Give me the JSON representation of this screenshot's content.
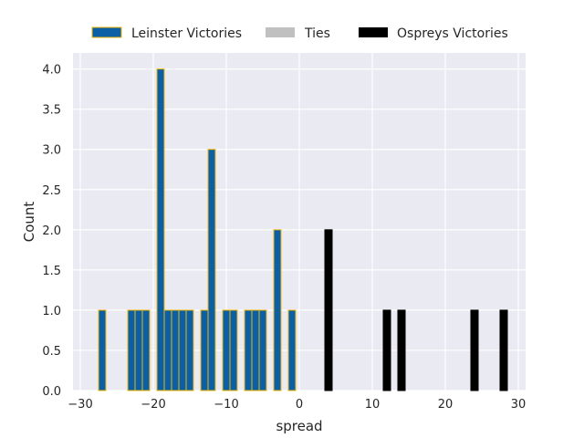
{
  "chart_data": {
    "type": "bar",
    "xlabel": "spread",
    "ylabel": "Count",
    "xlim": [
      -31,
      31
    ],
    "ylim": [
      0,
      4.2
    ],
    "xticks": [
      -30,
      -20,
      -10,
      0,
      10,
      20,
      30
    ],
    "xtick_labels": [
      "−30",
      "−20",
      "−10",
      "0",
      "10",
      "20",
      "30"
    ],
    "yticks": [
      0,
      0.5,
      1.0,
      1.5,
      2.0,
      2.5,
      3.0,
      3.5,
      4.0
    ],
    "ytick_labels": [
      "0.0",
      "0.5",
      "1.0",
      "1.5",
      "2.0",
      "2.5",
      "3.0",
      "3.5",
      "4.0"
    ],
    "grid": true,
    "legend_position": "top-center",
    "bar_width": 1,
    "series": [
      {
        "name": "Leinster Victories",
        "color": "#0b5fa5",
        "edgecolor": "#f2b705",
        "x": [
          -27,
          -23,
          -22,
          -21,
          -19,
          -18,
          -17,
          -16,
          -15,
          -13,
          -12,
          -10,
          -9,
          -7,
          -6,
          -5,
          -3,
          -1
        ],
        "values": [
          1,
          1,
          1,
          1,
          4,
          1,
          1,
          1,
          1,
          1,
          3,
          1,
          1,
          1,
          1,
          1,
          2,
          1
        ]
      },
      {
        "name": "Ties",
        "color": "#c0c0c0",
        "edgecolor": "#c0c0c0",
        "x": [],
        "values": []
      },
      {
        "name": "Ospreys Victories",
        "color": "#000000",
        "edgecolor": "#000000",
        "x": [
          4,
          12,
          14,
          24,
          28
        ],
        "values": [
          2,
          1,
          1,
          1,
          1
        ]
      }
    ]
  },
  "colors": {
    "plot_background": "#eaeaf2",
    "grid": "#ffffff",
    "text": "#262626"
  }
}
